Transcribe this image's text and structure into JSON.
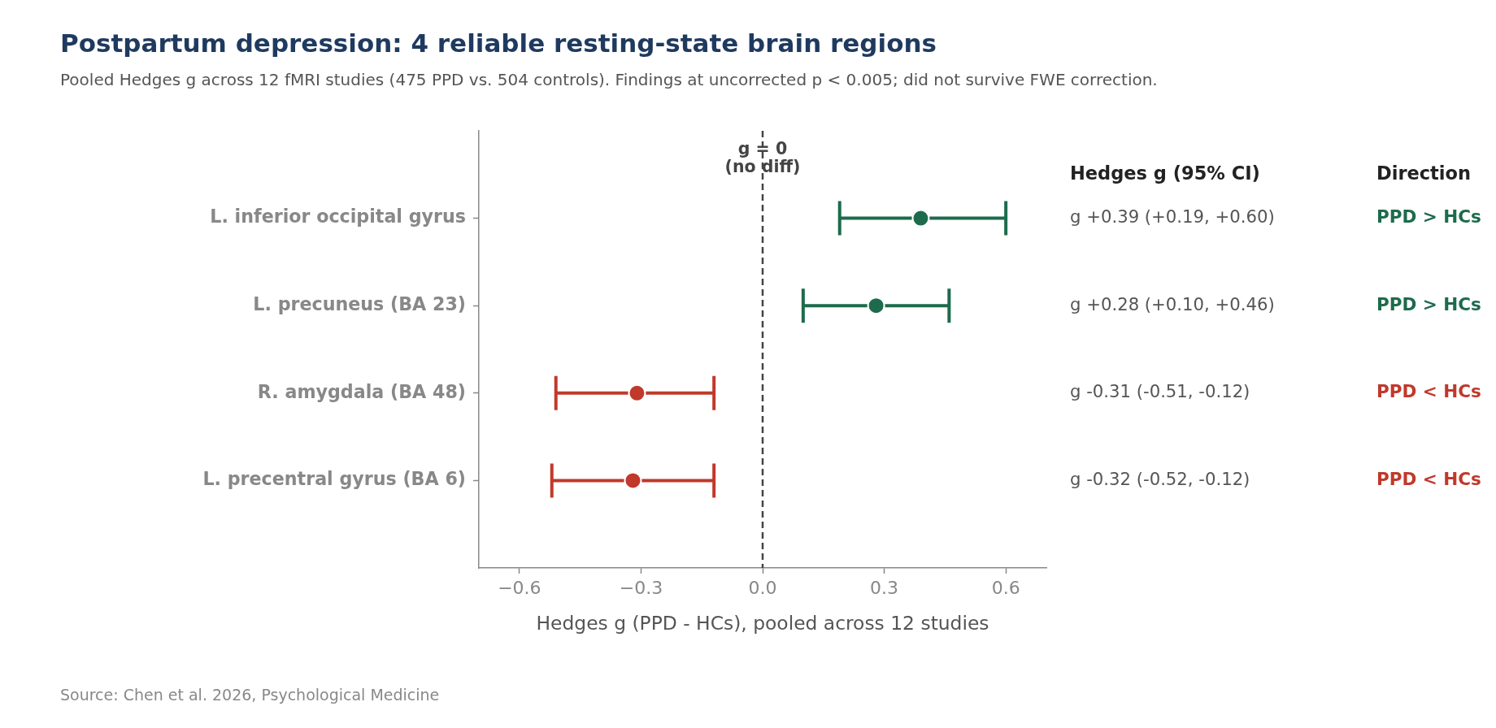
{
  "chart_data": {
    "type": "scatter",
    "orientation": "horizontal",
    "title": "Postpartum depression: 4 reliable resting-state brain regions",
    "subtitle": "Pooled Hedges g across 12 fMRI studies (475 PPD vs. 504 controls). Findings at uncorrected p < 0.005; did not survive FWE correction.",
    "xlabel": "Hedges g (PPD - HCs), pooled across 12 studies",
    "categories": [
      "L. inferior occipital gyrus",
      "L. precuneus (BA 23)",
      "R. amygdala (BA 48)",
      "L. precentral gyrus (BA 6)"
    ],
    "series": [
      {
        "name": "PPD > HCs",
        "color": "#1d6b4c",
        "values": [
          0.39,
          0.28,
          null,
          null
        ],
        "errors": [
          [
            0.19,
            0.6
          ],
          [
            0.1,
            0.46
          ],
          null,
          null
        ],
        "value_labels": [
          "g +0.39 (+0.19, +0.60)",
          "g +0.28 (+0.10, +0.46)",
          null,
          null
        ]
      },
      {
        "name": "PPD < HCs",
        "color": "#c0392b",
        "values": [
          null,
          null,
          -0.31,
          -0.32
        ],
        "errors": [
          null,
          null,
          [
            -0.51,
            -0.12
          ],
          [
            -0.52,
            -0.12
          ]
        ],
        "value_labels": [
          null,
          null,
          "g -0.31 (-0.51, -0.12)",
          "g -0.32 (-0.52, -0.12)"
        ]
      }
    ],
    "xlim": [
      -0.7,
      0.7
    ],
    "xticks": [
      {
        "value": -0.6,
        "label": "−0.6"
      },
      {
        "value": -0.3,
        "label": "−0.3"
      },
      {
        "value": 0,
        "label": "0.0"
      },
      0.3,
      0.6
    ],
    "marker": "circle",
    "ref_lines": [
      {
        "axis": "x",
        "value": 0,
        "label": "g = 0\n(no diff)",
        "color": "#444444",
        "line_style": "dashed"
      }
    ],
    "annotations": [
      "Hedges g (95% CI)",
      "Direction",
      "Source: Chen et al. 2026, Psychological Medicine"
    ]
  }
}
